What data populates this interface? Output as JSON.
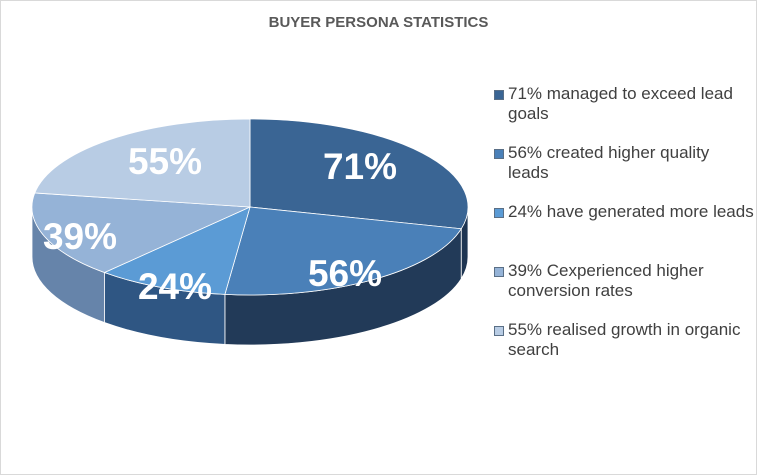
{
  "chart_data": {
    "type": "pie",
    "title": "BUYER PERSONA STATISTICS",
    "categories": [
      "71% managed to exceed lead goals",
      "56% created higher quality leads",
      "24% have generated more leads",
      "39% Cexperienced higher conversion rates",
      "55% realised growth in organic search"
    ],
    "values": [
      71,
      56,
      24,
      39,
      55
    ],
    "slice_labels": [
      "71%",
      "56%",
      "24%",
      "39%",
      "55%"
    ],
    "colors": [
      "#3a6594",
      "#4a80b8",
      "#5b9bd5",
      "#95b3d7",
      "#b8cce4"
    ],
    "side_colors": [
      "#1e3552",
      "#223a58",
      "#2f5683",
      "#6684aa",
      "#8ea5c2"
    ],
    "legend_position": "right",
    "style": "3d"
  }
}
